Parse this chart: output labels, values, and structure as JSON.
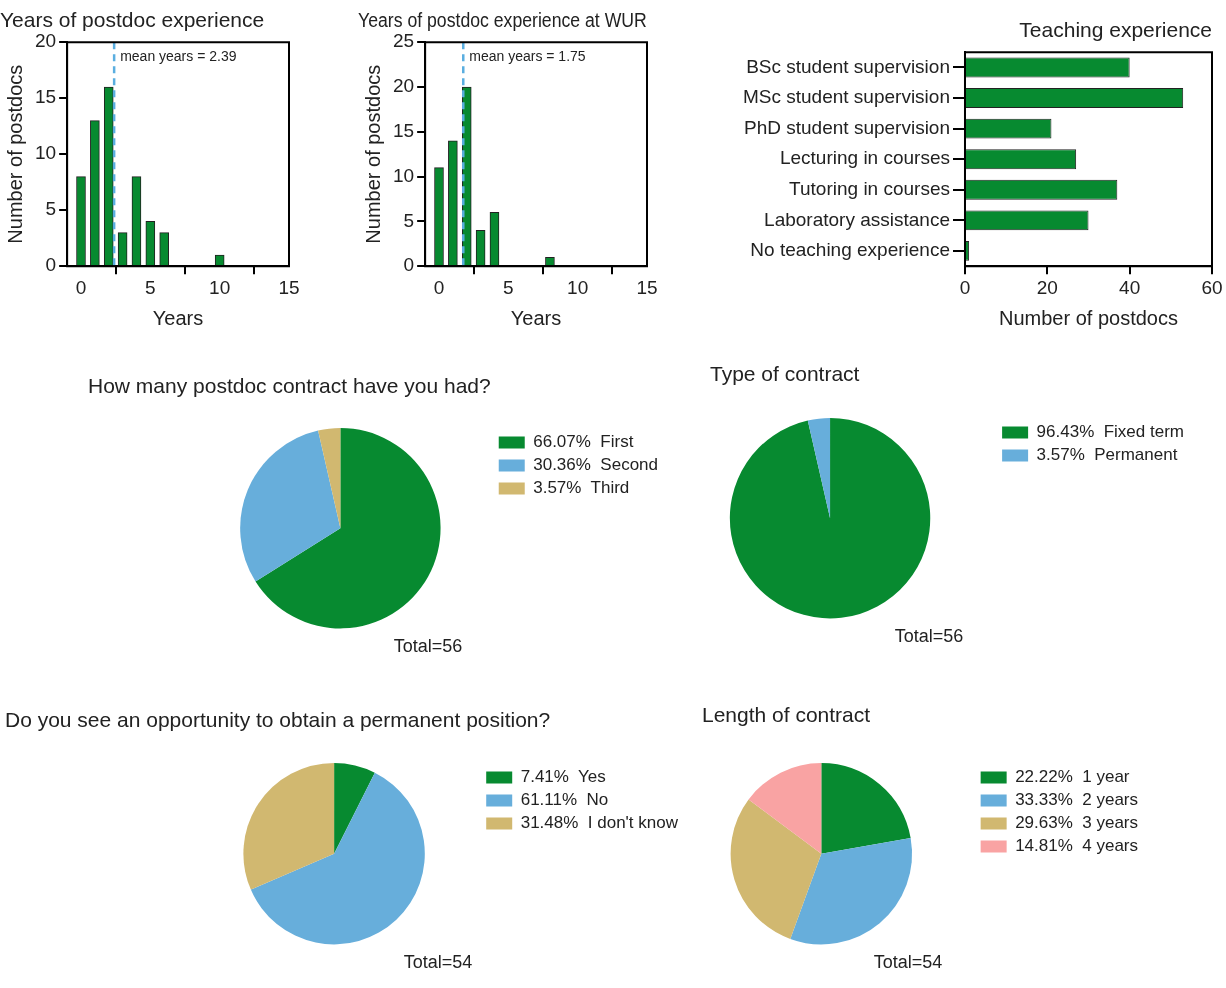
{
  "chart_data": [
    {
      "type": "bar",
      "title": "Years of postdoc experience",
      "xlabel": "Years",
      "ylabel": "Number of postdocs",
      "x": [
        0,
        1,
        2,
        3,
        4,
        5,
        6,
        10
      ],
      "values": [
        8,
        13,
        16,
        3,
        8,
        4,
        3,
        1
      ],
      "color": "#078a30",
      "xlim": [
        -1,
        15
      ],
      "xticks": [
        0,
        5,
        10,
        15
      ],
      "ylim": [
        0,
        20
      ],
      "yticks": [
        0,
        5,
        10,
        15,
        20
      ],
      "ref_lines": [
        {
          "axis": "x",
          "value": 2.39,
          "label": "mean years = 2.39",
          "color": "#5aaee0",
          "line_style": "dashed"
        }
      ]
    },
    {
      "type": "bar",
      "title": "Years of postdoc experience at WUR",
      "xlabel": "Years",
      "ylabel": "Number of postdocs",
      "x": [
        0,
        1,
        2,
        3,
        4,
        8
      ],
      "values": [
        11,
        14,
        20,
        4,
        6,
        1
      ],
      "color": "#078a30",
      "xlim": [
        -1,
        15
      ],
      "xticks": [
        0,
        5,
        10,
        15
      ],
      "ylim": [
        0,
        25
      ],
      "yticks": [
        0,
        5,
        10,
        15,
        20,
        25
      ],
      "ref_lines": [
        {
          "axis": "x",
          "value": 1.75,
          "label": "mean years = 1.75",
          "color": "#5aaee0",
          "line_style": "dashed"
        }
      ]
    },
    {
      "type": "bar",
      "orientation": "horizontal",
      "title": "Teaching experience",
      "xlabel": "Number of postdocs",
      "categories": [
        "BSc student supervision",
        "MSc student supervision",
        "PhD student supervision",
        "Lecturing in courses",
        "Tutoring in courses",
        "Laboratory assistance",
        "No teaching experience"
      ],
      "values": [
        40,
        53,
        21,
        27,
        37,
        30,
        1
      ],
      "color": "#078a30",
      "xlim": [
        0,
        60
      ],
      "xticks": [
        0,
        20,
        40,
        60
      ]
    },
    {
      "type": "pie",
      "title": "How many postdoc contract have you had?",
      "categories": [
        "66.07%  First",
        "30.36%  Second",
        "3.57%  Third"
      ],
      "values": [
        66.07,
        30.36,
        3.57
      ],
      "colors": [
        "#078a30",
        "#67aedb",
        "#d1b870"
      ],
      "legend": "right",
      "annotations": [
        "Total=56"
      ]
    },
    {
      "type": "pie",
      "title": "Type of contract",
      "categories": [
        "96.43%  Fixed term",
        "3.57%  Permanent"
      ],
      "values": [
        96.43,
        3.57
      ],
      "colors": [
        "#078a30",
        "#67aedb"
      ],
      "legend": "right",
      "annotations": [
        "Total=56"
      ]
    },
    {
      "type": "pie",
      "title": "Do you see an opportunity to obtain a permanent position?",
      "categories": [
        "7.41%  Yes",
        "61.11%  No",
        "31.48%  I don't know"
      ],
      "values": [
        7.41,
        61.11,
        31.48
      ],
      "colors": [
        "#078a30",
        "#67aedb",
        "#d1b870"
      ],
      "legend": "right",
      "annotations": [
        "Total=54"
      ]
    },
    {
      "type": "pie",
      "title": "Length of contract",
      "categories": [
        "22.22%  1 year",
        "33.33%  2 years",
        "29.63%  3 years",
        "14.81%  4 years"
      ],
      "values": [
        22.22,
        33.33,
        29.63,
        14.81
      ],
      "colors": [
        "#078a30",
        "#67aedb",
        "#d1b870",
        "#f9a3a3"
      ],
      "legend": "right",
      "annotations": [
        "Total=54"
      ]
    }
  ]
}
